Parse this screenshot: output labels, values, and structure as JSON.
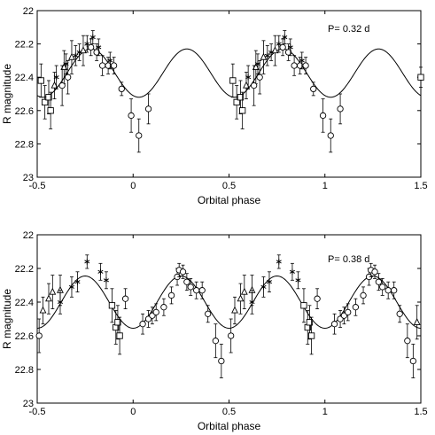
{
  "chart_data": [
    {
      "type": "scatter",
      "annotation": "P= 0.32 d",
      "xlabel": "Orbital phase",
      "ylabel": "R magnitude",
      "xlim": [
        -0.5,
        1.5
      ],
      "ylim": [
        22.0,
        23.0
      ],
      "y_inverted": true,
      "xticks": [
        "-0.5",
        "0",
        "0.5",
        "1",
        "1.5"
      ],
      "yticks": [
        "22",
        "22.2",
        "22.4",
        "22.6",
        "22.8",
        "23"
      ],
      "model_curve": {
        "period_in_phase": 0.5,
        "mean": 22.375,
        "amplitude": 0.145,
        "peak_phase": 0.28
      },
      "series": [
        {
          "marker": "square",
          "points": [
            {
              "x": -0.48,
              "y": 22.42,
              "err": 0.1
            },
            {
              "x": -0.46,
              "y": 22.55,
              "err": 0.1
            },
            {
              "x": -0.44,
              "y": 22.52,
              "err": 0.1
            },
            {
              "x": -0.43,
              "y": 22.6,
              "err": 0.11
            },
            {
              "x": 0.52,
              "y": 22.42,
              "err": 0.1
            },
            {
              "x": 0.54,
              "y": 22.55,
              "err": 0.1
            },
            {
              "x": 0.56,
              "y": 22.52,
              "err": 0.1
            },
            {
              "x": 0.57,
              "y": 22.6,
              "err": 0.11
            },
            {
              "x": 1.5,
              "y": 22.4,
              "err": 0.06
            }
          ]
        },
        {
          "marker": "triangle",
          "points": [
            {
              "x": -0.41,
              "y": 22.45,
              "err": 0.08
            },
            {
              "x": -0.36,
              "y": 22.34,
              "err": 0.1
            },
            {
              "x": -0.32,
              "y": 22.28,
              "err": 0.1
            },
            {
              "x": -0.26,
              "y": 22.24,
              "err": 0.09
            },
            {
              "x": 0.59,
              "y": 22.45,
              "err": 0.08
            },
            {
              "x": 0.64,
              "y": 22.34,
              "err": 0.1
            },
            {
              "x": 0.68,
              "y": 22.28,
              "err": 0.1
            },
            {
              "x": 0.74,
              "y": 22.24,
              "err": 0.09
            }
          ]
        },
        {
          "marker": "circle",
          "points": [
            {
              "x": -0.37,
              "y": 22.45,
              "err": 0.12
            },
            {
              "x": -0.34,
              "y": 22.4,
              "err": 0.1
            },
            {
              "x": -0.22,
              "y": 22.22,
              "err": 0.05
            },
            {
              "x": -0.19,
              "y": 22.25,
              "err": 0.05
            },
            {
              "x": -0.16,
              "y": 22.33,
              "err": 0.06
            },
            {
              "x": -0.13,
              "y": 22.33,
              "err": 0.05
            },
            {
              "x": -0.1,
              "y": 22.33,
              "err": 0.05
            },
            {
              "x": -0.06,
              "y": 22.47,
              "err": 0.04
            },
            {
              "x": -0.01,
              "y": 22.63,
              "err": 0.1
            },
            {
              "x": 0.03,
              "y": 22.75,
              "err": 0.1
            },
            {
              "x": 0.08,
              "y": 22.59,
              "err": 0.09
            },
            {
              "x": 0.63,
              "y": 22.45,
              "err": 0.12
            },
            {
              "x": 0.66,
              "y": 22.4,
              "err": 0.1
            },
            {
              "x": 0.78,
              "y": 22.22,
              "err": 0.05
            },
            {
              "x": 0.81,
              "y": 22.25,
              "err": 0.05
            },
            {
              "x": 0.84,
              "y": 22.33,
              "err": 0.06
            },
            {
              "x": 0.87,
              "y": 22.33,
              "err": 0.05
            },
            {
              "x": 0.9,
              "y": 22.33,
              "err": 0.05
            },
            {
              "x": 0.94,
              "y": 22.47,
              "err": 0.04
            },
            {
              "x": 0.99,
              "y": 22.63,
              "err": 0.1
            },
            {
              "x": 1.03,
              "y": 22.75,
              "err": 0.1
            },
            {
              "x": 1.08,
              "y": 22.59,
              "err": 0.09
            }
          ]
        },
        {
          "marker": "asterisk",
          "points": [
            {
              "x": -0.4,
              "y": 22.4,
              "err": 0.07
            },
            {
              "x": -0.35,
              "y": 22.32,
              "err": 0.06
            },
            {
              "x": -0.3,
              "y": 22.27,
              "err": 0.06
            },
            {
              "x": -0.28,
              "y": 22.25,
              "err": 0.05
            },
            {
              "x": -0.24,
              "y": 22.2,
              "err": 0.05
            },
            {
              "x": -0.21,
              "y": 22.16,
              "err": 0.04
            },
            {
              "x": -0.18,
              "y": 22.22,
              "err": 0.05
            },
            {
              "x": -0.12,
              "y": 22.3,
              "err": 0.05
            },
            {
              "x": 0.6,
              "y": 22.4,
              "err": 0.07
            },
            {
              "x": 0.65,
              "y": 22.32,
              "err": 0.06
            },
            {
              "x": 0.7,
              "y": 22.27,
              "err": 0.06
            },
            {
              "x": 0.72,
              "y": 22.25,
              "err": 0.05
            },
            {
              "x": 0.76,
              "y": 22.2,
              "err": 0.05
            },
            {
              "x": 0.79,
              "y": 22.16,
              "err": 0.04
            },
            {
              "x": 0.82,
              "y": 22.22,
              "err": 0.05
            },
            {
              "x": 0.88,
              "y": 22.3,
              "err": 0.05
            }
          ]
        }
      ]
    },
    {
      "type": "scatter",
      "annotation": "P= 0.38 d",
      "xlabel": "Orbital phase",
      "ylabel": "R magnitude",
      "xlim": [
        -0.5,
        1.5
      ],
      "ylim": [
        22.0,
        23.0
      ],
      "y_inverted": true,
      "xticks": [
        "-0.5",
        "0",
        "0.5",
        "1",
        "1.5"
      ],
      "yticks": [
        "22",
        "22.2",
        "22.4",
        "22.6",
        "22.8",
        "23"
      ],
      "model_curve": {
        "period_in_phase": 0.5,
        "mean": 22.4,
        "amplitude": 0.155,
        "peak_phase": 0.25
      },
      "series": [
        {
          "marker": "circle",
          "points": [
            {
              "x": -0.49,
              "y": 22.6,
              "err": 0.1
            },
            {
              "x": -0.04,
              "y": 22.38,
              "err": 0.06
            },
            {
              "x": 0.05,
              "y": 22.53,
              "err": 0.06
            },
            {
              "x": 0.08,
              "y": 22.5,
              "err": 0.05
            },
            {
              "x": 0.1,
              "y": 22.48,
              "err": 0.05
            },
            {
              "x": 0.12,
              "y": 22.46,
              "err": 0.05
            },
            {
              "x": 0.16,
              "y": 22.43,
              "err": 0.05
            },
            {
              "x": 0.2,
              "y": 22.36,
              "err": 0.05
            },
            {
              "x": 0.23,
              "y": 22.25,
              "err": 0.05
            },
            {
              "x": 0.24,
              "y": 22.21,
              "err": 0.04
            },
            {
              "x": 0.26,
              "y": 22.22,
              "err": 0.04
            },
            {
              "x": 0.28,
              "y": 22.28,
              "err": 0.05
            },
            {
              "x": 0.3,
              "y": 22.31,
              "err": 0.05
            },
            {
              "x": 0.33,
              "y": 22.33,
              "err": 0.05
            },
            {
              "x": 0.36,
              "y": 22.33,
              "err": 0.05
            },
            {
              "x": 0.39,
              "y": 22.47,
              "err": 0.05
            },
            {
              "x": 0.43,
              "y": 22.63,
              "err": 0.1
            },
            {
              "x": 0.46,
              "y": 22.75,
              "err": 0.1
            },
            {
              "x": 0.51,
              "y": 22.6,
              "err": 0.1
            },
            {
              "x": 0.96,
              "y": 22.38,
              "err": 0.06
            },
            {
              "x": 1.05,
              "y": 22.53,
              "err": 0.06
            },
            {
              "x": 1.08,
              "y": 22.5,
              "err": 0.05
            },
            {
              "x": 1.1,
              "y": 22.48,
              "err": 0.05
            },
            {
              "x": 1.12,
              "y": 22.46,
              "err": 0.05
            },
            {
              "x": 1.16,
              "y": 22.43,
              "err": 0.05
            },
            {
              "x": 1.2,
              "y": 22.36,
              "err": 0.05
            },
            {
              "x": 1.23,
              "y": 22.25,
              "err": 0.05
            },
            {
              "x": 1.24,
              "y": 22.21,
              "err": 0.04
            },
            {
              "x": 1.26,
              "y": 22.22,
              "err": 0.04
            },
            {
              "x": 1.28,
              "y": 22.28,
              "err": 0.05
            },
            {
              "x": 1.3,
              "y": 22.31,
              "err": 0.05
            },
            {
              "x": 1.33,
              "y": 22.33,
              "err": 0.05
            },
            {
              "x": 1.36,
              "y": 22.33,
              "err": 0.05
            },
            {
              "x": 1.39,
              "y": 22.47,
              "err": 0.05
            },
            {
              "x": 1.43,
              "y": 22.63,
              "err": 0.1
            },
            {
              "x": 1.46,
              "y": 22.75,
              "err": 0.1
            }
          ]
        },
        {
          "marker": "square",
          "points": [
            {
              "x": -0.11,
              "y": 22.42,
              "err": 0.1
            },
            {
              "x": -0.09,
              "y": 22.55,
              "err": 0.1
            },
            {
              "x": -0.08,
              "y": 22.52,
              "err": 0.1
            },
            {
              "x": -0.07,
              "y": 22.6,
              "err": 0.11
            },
            {
              "x": 0.89,
              "y": 22.42,
              "err": 0.1
            },
            {
              "x": 0.91,
              "y": 22.55,
              "err": 0.1
            },
            {
              "x": 0.92,
              "y": 22.52,
              "err": 0.1
            },
            {
              "x": 0.93,
              "y": 22.6,
              "err": 0.11
            }
          ]
        },
        {
          "marker": "triangle",
          "points": [
            {
              "x": -0.47,
              "y": 22.45,
              "err": 0.08
            },
            {
              "x": -0.44,
              "y": 22.38,
              "err": 0.09
            },
            {
              "x": -0.42,
              "y": 22.34,
              "err": 0.1
            },
            {
              "x": -0.38,
              "y": 22.33,
              "err": 0.09
            },
            {
              "x": 0.53,
              "y": 22.45,
              "err": 0.08
            },
            {
              "x": 0.56,
              "y": 22.38,
              "err": 0.09
            },
            {
              "x": 0.58,
              "y": 22.34,
              "err": 0.1
            },
            {
              "x": 0.62,
              "y": 22.33,
              "err": 0.09
            },
            {
              "x": 1.48,
              "y": 22.52,
              "err": 0.1
            }
          ]
        },
        {
          "marker": "asterisk",
          "points": [
            {
              "x": -0.38,
              "y": 22.4,
              "err": 0.07
            },
            {
              "x": -0.32,
              "y": 22.31,
              "err": 0.06
            },
            {
              "x": -0.29,
              "y": 22.28,
              "err": 0.06
            },
            {
              "x": -0.24,
              "y": 22.16,
              "err": 0.04
            },
            {
              "x": -0.17,
              "y": 22.22,
              "err": 0.05
            },
            {
              "x": -0.14,
              "y": 22.27,
              "err": 0.05
            },
            {
              "x": 0.62,
              "y": 22.4,
              "err": 0.07
            },
            {
              "x": 0.68,
              "y": 22.31,
              "err": 0.06
            },
            {
              "x": 0.71,
              "y": 22.28,
              "err": 0.06
            },
            {
              "x": 0.76,
              "y": 22.16,
              "err": 0.04
            },
            {
              "x": 0.83,
              "y": 22.22,
              "err": 0.05
            },
            {
              "x": 0.86,
              "y": 22.27,
              "err": 0.05
            }
          ]
        }
      ]
    }
  ]
}
